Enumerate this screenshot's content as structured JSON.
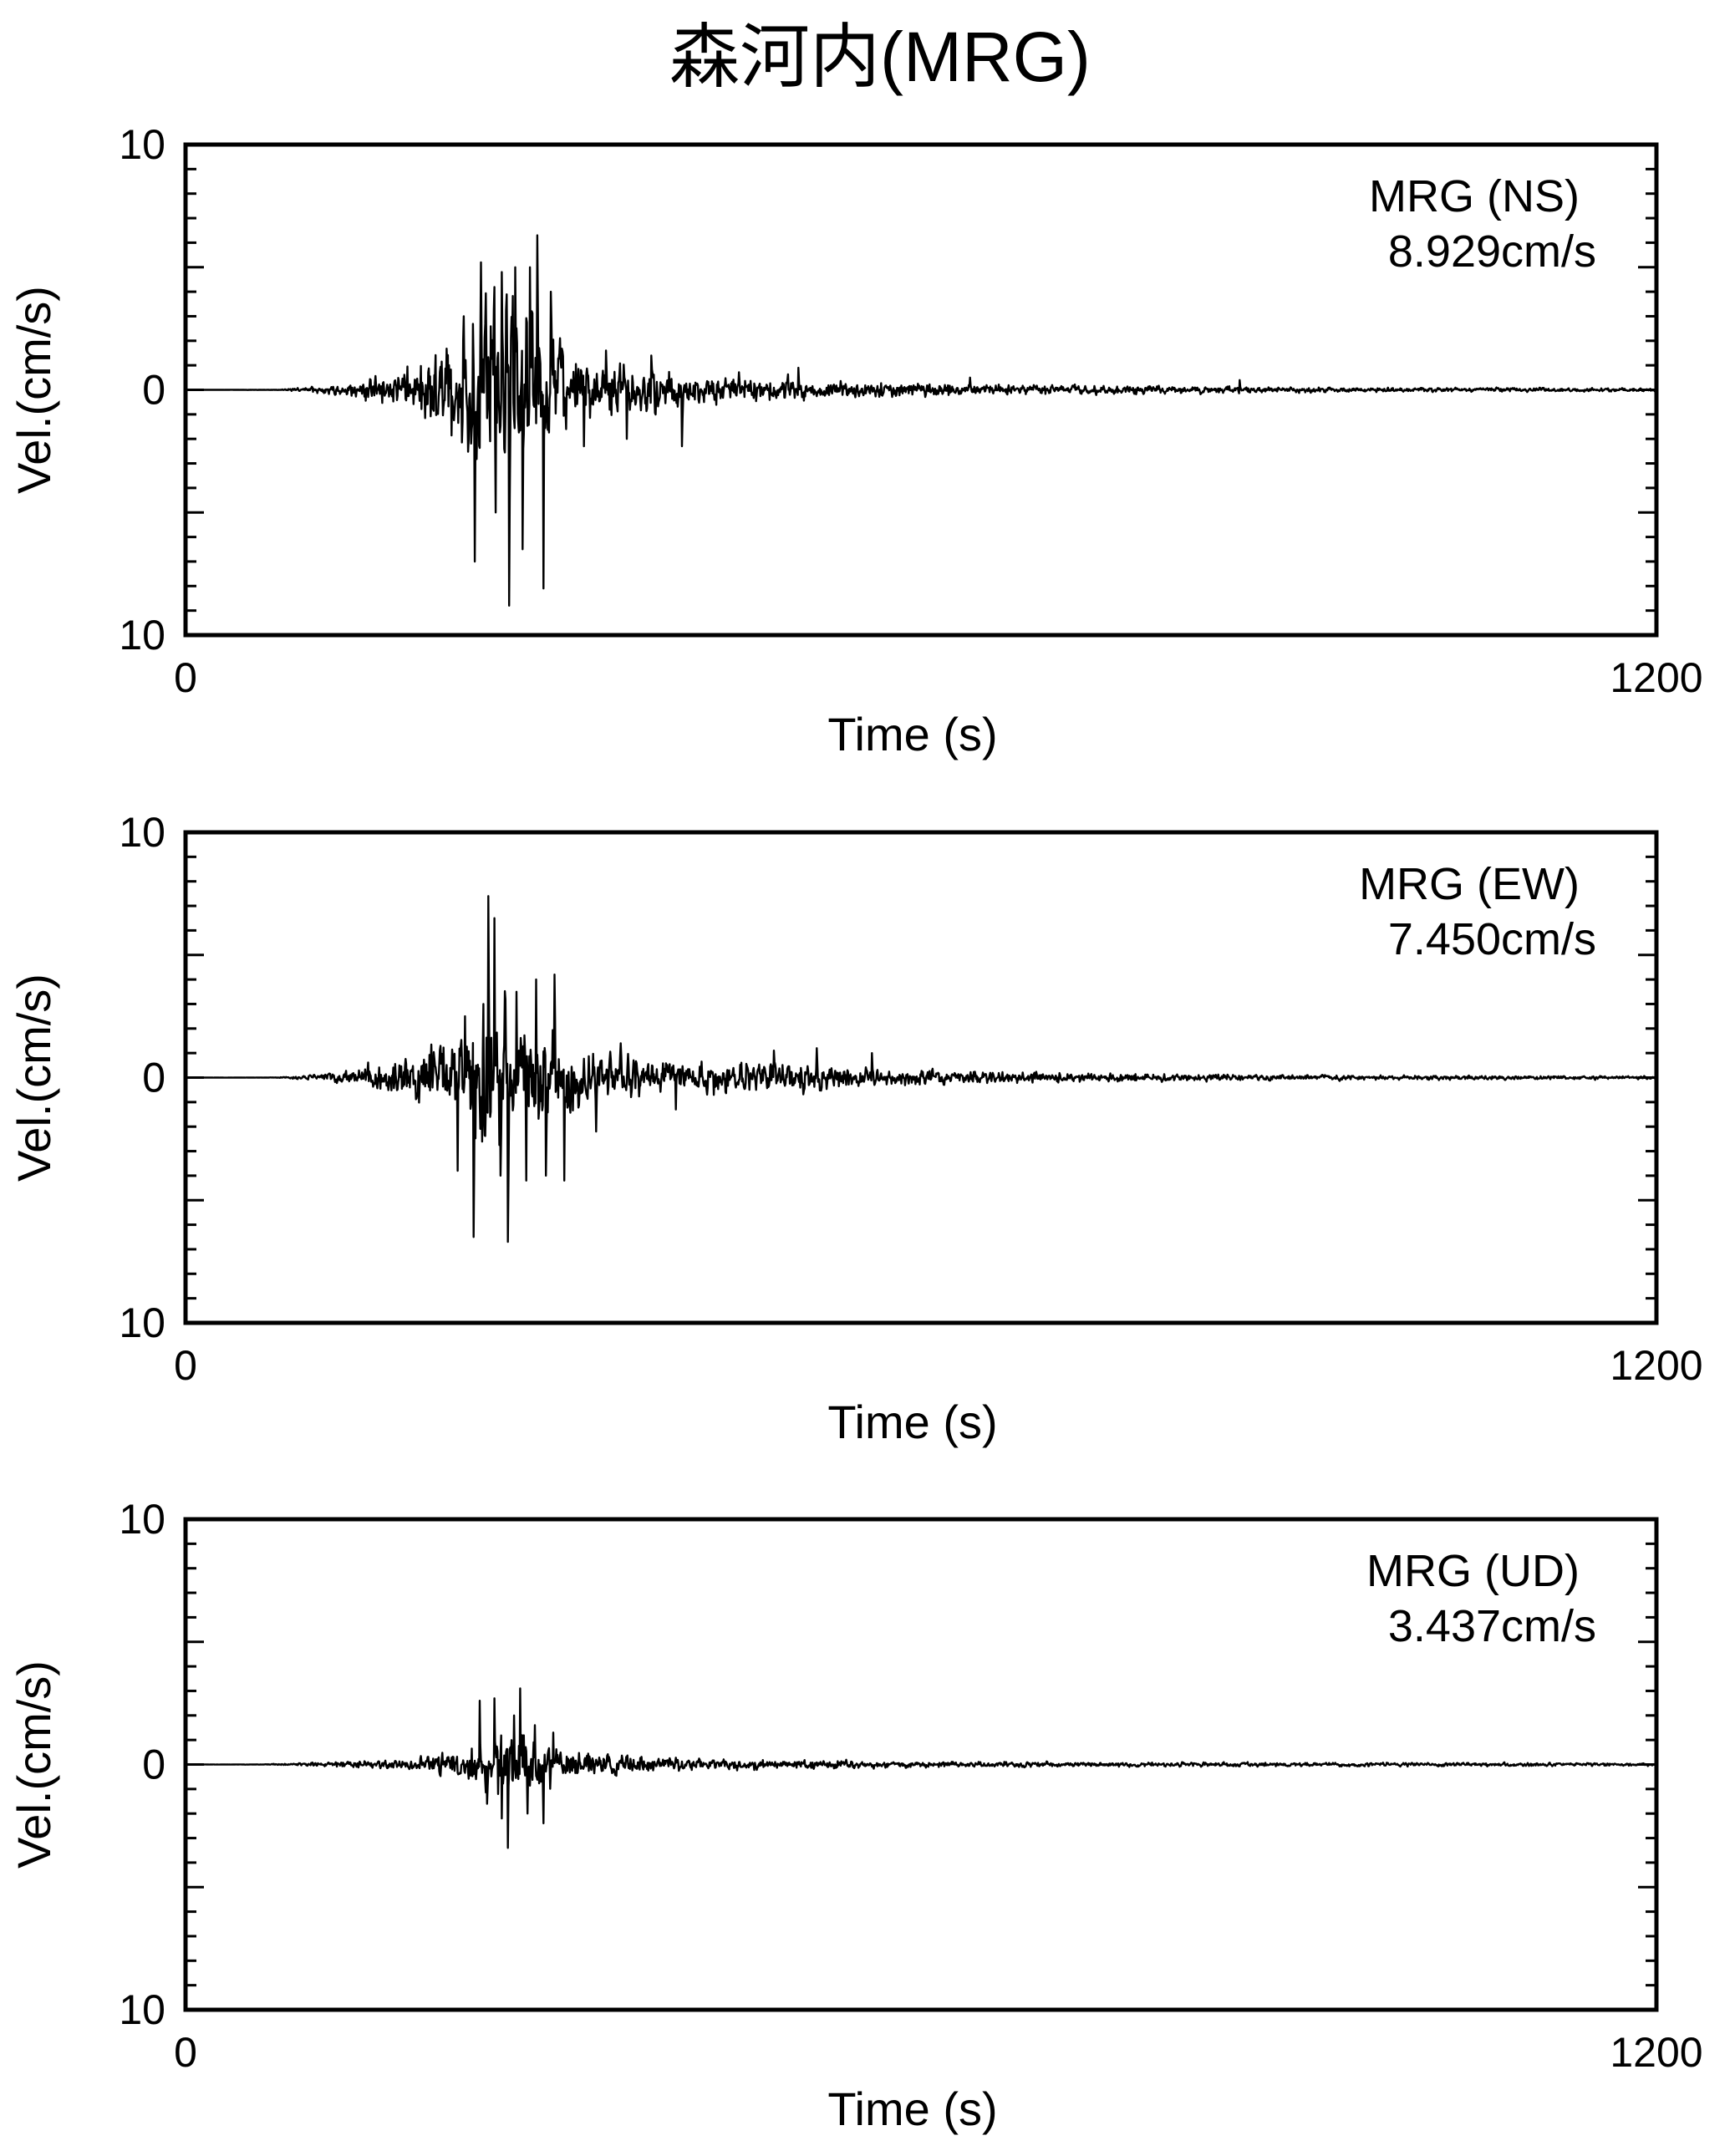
{
  "title": "森河内(MRG)",
  "chart_data": [
    {
      "type": "line",
      "xlabel": "Time (s)",
      "ylabel": "Vel.(cm/s)",
      "xlim": [
        0,
        1200
      ],
      "ylim": [
        -10,
        10
      ],
      "x_tick_labels": [
        "0",
        "1200"
      ],
      "y_tick_labels": [
        "10",
        "0",
        "10"
      ],
      "station_label": "MRG (NS)",
      "peak_label": "8.929cm/s",
      "peak_value": 8.929,
      "envelope": [
        [
          0,
          0
        ],
        [
          75,
          0.02
        ],
        [
          110,
          0.3
        ],
        [
          130,
          0.6
        ],
        [
          150,
          1.0
        ],
        [
          175,
          1.6
        ],
        [
          200,
          3.5
        ],
        [
          230,
          6.5
        ],
        [
          260,
          8.9
        ],
        [
          290,
          6.0
        ],
        [
          320,
          3.0
        ],
        [
          380,
          1.8
        ],
        [
          450,
          1.2
        ],
        [
          520,
          0.9
        ],
        [
          600,
          0.6
        ],
        [
          700,
          0.45
        ],
        [
          800,
          0.35
        ],
        [
          900,
          0.25
        ],
        [
          1000,
          0.2
        ],
        [
          1200,
          0.15
        ]
      ],
      "spikes": [
        {
          "t": 236,
          "v": -7.0
        },
        {
          "t": 241,
          "v": 5.2
        },
        {
          "t": 253,
          "v": -5.0
        },
        {
          "t": 258,
          "v": 4.8
        },
        {
          "t": 264,
          "v": -8.8
        },
        {
          "t": 269,
          "v": 5.0
        },
        {
          "t": 275,
          "v": -6.5
        },
        {
          "t": 281,
          "v": 5.0
        },
        {
          "t": 287,
          "v": 6.3
        },
        {
          "t": 292,
          "v": -8.1
        },
        {
          "t": 298,
          "v": 4.0
        },
        {
          "t": 325,
          "v": -2.3
        },
        {
          "t": 343,
          "v": 1.6
        },
        {
          "t": 360,
          "v": -2.0
        },
        {
          "t": 380,
          "v": 1.4
        },
        {
          "t": 405,
          "v": -2.3
        },
        {
          "t": 500,
          "v": 0.9
        },
        {
          "t": 640,
          "v": 0.5
        },
        {
          "t": 860,
          "v": 0.4
        }
      ]
    },
    {
      "type": "line",
      "xlabel": "Time (s)",
      "ylabel": "Vel.(cm/s)",
      "xlim": [
        0,
        1200
      ],
      "ylim": [
        -10,
        10
      ],
      "x_tick_labels": [
        "0",
        "1200"
      ],
      "y_tick_labels": [
        "10",
        "0",
        "10"
      ],
      "station_label": "MRG (EW)",
      "peak_label": "7.450cm/s",
      "peak_value": 7.45,
      "envelope": [
        [
          0,
          0
        ],
        [
          75,
          0.02
        ],
        [
          110,
          0.3
        ],
        [
          140,
          0.8
        ],
        [
          170,
          1.5
        ],
        [
          200,
          2.8
        ],
        [
          230,
          4.5
        ],
        [
          250,
          7.4
        ],
        [
          270,
          6.0
        ],
        [
          300,
          4.0
        ],
        [
          330,
          2.2
        ],
        [
          380,
          1.6
        ],
        [
          430,
          1.4
        ],
        [
          480,
          1.3
        ],
        [
          520,
          1.1
        ],
        [
          560,
          0.9
        ],
        [
          620,
          0.6
        ],
        [
          700,
          0.45
        ],
        [
          800,
          0.35
        ],
        [
          900,
          0.25
        ],
        [
          1000,
          0.2
        ],
        [
          1200,
          0.15
        ]
      ],
      "spikes": [
        {
          "t": 222,
          "v": -3.8
        },
        {
          "t": 228,
          "v": 2.5
        },
        {
          "t": 235,
          "v": -6.5
        },
        {
          "t": 243,
          "v": 3.0
        },
        {
          "t": 247,
          "v": 7.4
        },
        {
          "t": 252,
          "v": 6.5
        },
        {
          "t": 257,
          "v": -4.0
        },
        {
          "t": 263,
          "v": -6.7
        },
        {
          "t": 270,
          "v": 3.5
        },
        {
          "t": 278,
          "v": -4.2
        },
        {
          "t": 286,
          "v": 4.0
        },
        {
          "t": 294,
          "v": -4.0
        },
        {
          "t": 301,
          "v": 4.2
        },
        {
          "t": 309,
          "v": -4.2
        },
        {
          "t": 335,
          "v": -2.2
        },
        {
          "t": 355,
          "v": 1.4
        },
        {
          "t": 400,
          "v": -1.3
        },
        {
          "t": 480,
          "v": 1.1
        },
        {
          "t": 515,
          "v": 1.2
        },
        {
          "t": 560,
          "v": 1.0
        }
      ]
    },
    {
      "type": "line",
      "xlabel": "Time (s)",
      "ylabel": "Vel.(cm/s)",
      "xlim": [
        0,
        1200
      ],
      "ylim": [
        -10,
        10
      ],
      "x_tick_labels": [
        "0",
        "1200"
      ],
      "y_tick_labels": [
        "10",
        "0",
        "10"
      ],
      "station_label": "MRG (UD)",
      "peak_label": "3.437cm/s",
      "peak_value": 3.437,
      "envelope": [
        [
          0,
          0
        ],
        [
          60,
          0.02
        ],
        [
          100,
          0.15
        ],
        [
          150,
          0.35
        ],
        [
          190,
          0.6
        ],
        [
          220,
          1.2
        ],
        [
          240,
          2.2
        ],
        [
          260,
          3.0
        ],
        [
          270,
          3.4
        ],
        [
          290,
          2.2
        ],
        [
          320,
          1.2
        ],
        [
          380,
          0.7
        ],
        [
          460,
          0.45
        ],
        [
          550,
          0.35
        ],
        [
          650,
          0.25
        ],
        [
          800,
          0.2
        ],
        [
          1000,
          0.18
        ],
        [
          1200,
          0.12
        ]
      ],
      "spikes": [
        {
          "t": 240,
          "v": 2.6
        },
        {
          "t": 246,
          "v": -1.6
        },
        {
          "t": 252,
          "v": 2.7
        },
        {
          "t": 258,
          "v": -2.2
        },
        {
          "t": 263,
          "v": -3.4
        },
        {
          "t": 268,
          "v": 2.0
        },
        {
          "t": 273,
          "v": 3.1
        },
        {
          "t": 279,
          "v": -2.0
        },
        {
          "t": 285,
          "v": 1.6
        },
        {
          "t": 292,
          "v": -2.4
        },
        {
          "t": 300,
          "v": 1.3
        }
      ]
    }
  ]
}
